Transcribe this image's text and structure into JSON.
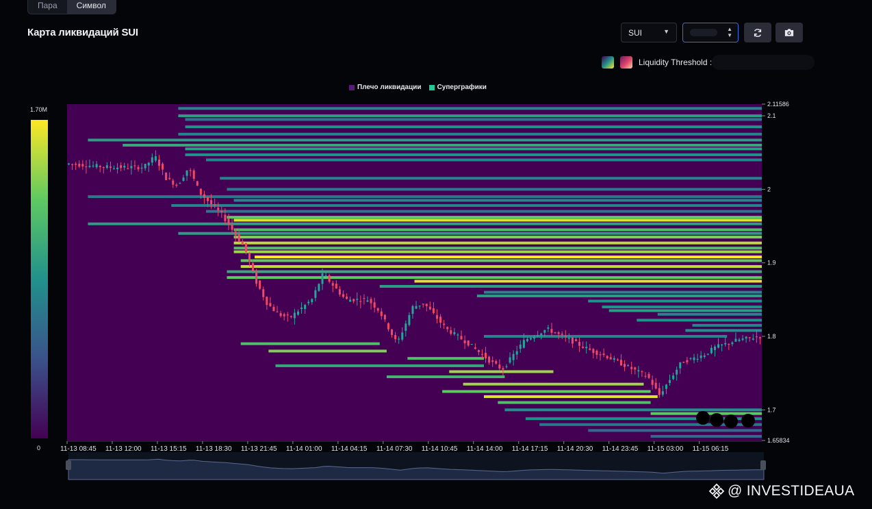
{
  "tabs": [
    {
      "label": "Пара",
      "active": false
    },
    {
      "label": "Символ",
      "active": true
    }
  ],
  "header": {
    "title": "Карта ликвидаций SUI"
  },
  "controls": {
    "symbol_value": "SUI",
    "refresh_icon": "refresh-icon",
    "camera_icon": "camera-icon",
    "threshold_label": "Liquidity Threshold :"
  },
  "colors": {
    "background": "#040509",
    "heatmap_base": "#440154",
    "candle_up": "#26a69a",
    "candle_down": "#ef4a67"
  },
  "watermark": {
    "text": "@ INVESTIDEAUA",
    "icon": "binance-logo-icon"
  },
  "chart_data": {
    "type": "heatmap",
    "legend": [
      "Плечо ликвидации",
      "Суперграфики"
    ],
    "legend_colors": [
      "#440154",
      "#20c997"
    ],
    "colorbar": {
      "max_label": "1.70M",
      "min_label": "0"
    },
    "y_ticks": [
      {
        "value": 2.11586,
        "label": "2.11586"
      },
      {
        "value": 2.1,
        "label": "2.1"
      },
      {
        "value": 2.0,
        "label": "2"
      },
      {
        "value": 1.9,
        "label": "1.9"
      },
      {
        "value": 1.8,
        "label": "1.8"
      },
      {
        "value": 1.7,
        "label": "1.7"
      },
      {
        "value": 1.65834,
        "label": "1.65834"
      }
    ],
    "ylim": [
      1.65834,
      2.11586
    ],
    "x_ticks": [
      "11-13 08:45",
      "11-13 12:00",
      "11-13 15:15",
      "11-13 18:30",
      "11-13 21:45",
      "11-14 01:00",
      "11-14 04:15",
      "11-14 07:30",
      "11-14 10:45",
      "11-14 14:00",
      "11-14 17:15",
      "11-14 20:30",
      "11-14 23:45",
      "11-15 03:00",
      "11-15 06:15"
    ],
    "bars_per_tick": 13,
    "bar_count": 200,
    "price_path": [
      [
        0,
        2.035
      ],
      [
        20,
        2.03
      ],
      [
        35,
        2.03
      ],
      [
        40,
        2.045
      ],
      [
        45,
        2.015
      ],
      [
        50,
        2.005
      ],
      [
        55,
        2.03
      ],
      [
        60,
        1.995
      ],
      [
        70,
        1.965
      ],
      [
        80,
        1.92
      ],
      [
        85,
        1.875
      ],
      [
        90,
        1.845
      ],
      [
        95,
        1.83
      ],
      [
        100,
        1.825
      ],
      [
        110,
        1.85
      ],
      [
        115,
        1.885
      ],
      [
        125,
        1.85
      ],
      [
        135,
        1.85
      ],
      [
        140,
        1.835
      ],
      [
        148,
        1.79
      ],
      [
        155,
        1.84
      ],
      [
        160,
        1.845
      ],
      [
        170,
        1.81
      ],
      [
        180,
        1.79
      ],
      [
        190,
        1.765
      ],
      [
        195,
        1.755
      ],
      [
        205,
        1.795
      ],
      [
        215,
        1.81
      ],
      [
        225,
        1.795
      ],
      [
        235,
        1.78
      ],
      [
        240,
        1.775
      ],
      [
        250,
        1.76
      ],
      [
        260,
        1.745
      ],
      [
        265,
        1.72
      ],
      [
        275,
        1.765
      ],
      [
        285,
        1.775
      ],
      [
        290,
        1.785
      ],
      [
        300,
        1.795
      ],
      [
        310,
        1.8
      ]
    ],
    "liquidation_levels": [
      {
        "price": 2.11,
        "start": 0.16,
        "end": 1.0,
        "intensity": 0.45
      },
      {
        "price": 2.1,
        "start": 0.16,
        "end": 1.0,
        "intensity": 0.55
      },
      {
        "price": 2.095,
        "start": 0.17,
        "end": 1.0,
        "intensity": 0.4
      },
      {
        "price": 2.085,
        "start": 0.17,
        "end": 1.0,
        "intensity": 0.5
      },
      {
        "price": 2.075,
        "start": 0.16,
        "end": 1.0,
        "intensity": 0.45
      },
      {
        "price": 2.067,
        "start": 0.03,
        "end": 1.0,
        "intensity": 0.55
      },
      {
        "price": 2.06,
        "start": 0.08,
        "end": 1.0,
        "intensity": 0.6
      },
      {
        "price": 2.055,
        "start": 0.17,
        "end": 1.0,
        "intensity": 0.55
      },
      {
        "price": 2.047,
        "start": 0.17,
        "end": 1.0,
        "intensity": 0.5
      },
      {
        "price": 2.04,
        "start": 0.2,
        "end": 1.0,
        "intensity": 0.45
      },
      {
        "price": 2.015,
        "start": 0.22,
        "end": 1.0,
        "intensity": 0.45
      },
      {
        "price": 2.0,
        "start": 0.23,
        "end": 1.0,
        "intensity": 0.4
      },
      {
        "price": 1.99,
        "start": 0.03,
        "end": 1.0,
        "intensity": 0.4
      },
      {
        "price": 1.985,
        "start": 0.24,
        "end": 1.0,
        "intensity": 0.45
      },
      {
        "price": 1.978,
        "start": 0.15,
        "end": 1.0,
        "intensity": 0.45
      },
      {
        "price": 1.97,
        "start": 0.2,
        "end": 1.0,
        "intensity": 0.4
      },
      {
        "price": 1.962,
        "start": 0.23,
        "end": 1.0,
        "intensity": 0.75
      },
      {
        "price": 1.958,
        "start": 0.24,
        "end": 1.0,
        "intensity": 0.95
      },
      {
        "price": 1.953,
        "start": 0.03,
        "end": 1.0,
        "intensity": 0.55
      },
      {
        "price": 1.945,
        "start": 0.24,
        "end": 1.0,
        "intensity": 0.7
      },
      {
        "price": 1.94,
        "start": 0.16,
        "end": 1.0,
        "intensity": 0.55
      },
      {
        "price": 1.935,
        "start": 0.24,
        "end": 1.0,
        "intensity": 0.8
      },
      {
        "price": 1.927,
        "start": 0.24,
        "end": 1.0,
        "intensity": 0.9
      },
      {
        "price": 1.92,
        "start": 0.24,
        "end": 1.0,
        "intensity": 0.7
      },
      {
        "price": 1.915,
        "start": 0.24,
        "end": 1.0,
        "intensity": 0.85
      },
      {
        "price": 1.908,
        "start": 0.27,
        "end": 1.0,
        "intensity": 1.0
      },
      {
        "price": 1.903,
        "start": 0.25,
        "end": 1.0,
        "intensity": 0.75
      },
      {
        "price": 1.895,
        "start": 0.25,
        "end": 1.0,
        "intensity": 0.9
      },
      {
        "price": 1.888,
        "start": 0.23,
        "end": 1.0,
        "intensity": 0.6
      },
      {
        "price": 1.88,
        "start": 0.23,
        "end": 1.0,
        "intensity": 0.75
      },
      {
        "price": 1.875,
        "start": 0.5,
        "end": 1.0,
        "intensity": 0.95
      },
      {
        "price": 1.868,
        "start": 0.45,
        "end": 1.0,
        "intensity": 0.55
      },
      {
        "price": 1.86,
        "start": 0.6,
        "end": 1.0,
        "intensity": 0.45
      },
      {
        "price": 1.855,
        "start": 0.59,
        "end": 1.0,
        "intensity": 0.55
      },
      {
        "price": 1.848,
        "start": 0.75,
        "end": 1.0,
        "intensity": 0.5
      },
      {
        "price": 1.84,
        "start": 0.77,
        "end": 1.0,
        "intensity": 0.5
      },
      {
        "price": 1.835,
        "start": 0.78,
        "end": 1.0,
        "intensity": 0.55
      },
      {
        "price": 1.83,
        "start": 0.85,
        "end": 1.0,
        "intensity": 0.45
      },
      {
        "price": 1.822,
        "start": 0.82,
        "end": 1.0,
        "intensity": 0.5
      },
      {
        "price": 1.815,
        "start": 0.9,
        "end": 1.0,
        "intensity": 0.45
      },
      {
        "price": 1.808,
        "start": 0.89,
        "end": 1.0,
        "intensity": 0.5
      },
      {
        "price": 1.8,
        "start": 0.6,
        "end": 0.95,
        "intensity": 0.45
      },
      {
        "price": 1.79,
        "start": 0.25,
        "end": 0.45,
        "intensity": 0.7
      },
      {
        "price": 1.78,
        "start": 0.29,
        "end": 0.46,
        "intensity": 0.8
      },
      {
        "price": 1.77,
        "start": 0.49,
        "end": 0.6,
        "intensity": 0.7
      },
      {
        "price": 1.76,
        "start": 0.3,
        "end": 0.6,
        "intensity": 0.6
      },
      {
        "price": 1.752,
        "start": 0.55,
        "end": 0.7,
        "intensity": 0.85
      },
      {
        "price": 1.745,
        "start": 0.46,
        "end": 0.63,
        "intensity": 0.65
      },
      {
        "price": 1.735,
        "start": 0.57,
        "end": 0.83,
        "intensity": 0.85
      },
      {
        "price": 1.725,
        "start": 0.54,
        "end": 0.84,
        "intensity": 0.75
      },
      {
        "price": 1.718,
        "start": 0.6,
        "end": 0.85,
        "intensity": 0.95
      },
      {
        "price": 1.71,
        "start": 0.62,
        "end": 0.84,
        "intensity": 0.7
      },
      {
        "price": 1.7,
        "start": 0.63,
        "end": 1.0,
        "intensity": 0.5
      },
      {
        "price": 1.695,
        "start": 0.84,
        "end": 1.0,
        "intensity": 0.75
      },
      {
        "price": 1.688,
        "start": 0.66,
        "end": 1.0,
        "intensity": 0.5
      },
      {
        "price": 1.68,
        "start": 0.68,
        "end": 1.0,
        "intensity": 0.4
      },
      {
        "price": 1.672,
        "start": 0.75,
        "end": 1.0,
        "intensity": 0.35
      },
      {
        "price": 1.664,
        "start": 0.84,
        "end": 1.0,
        "intensity": 0.35
      }
    ]
  }
}
